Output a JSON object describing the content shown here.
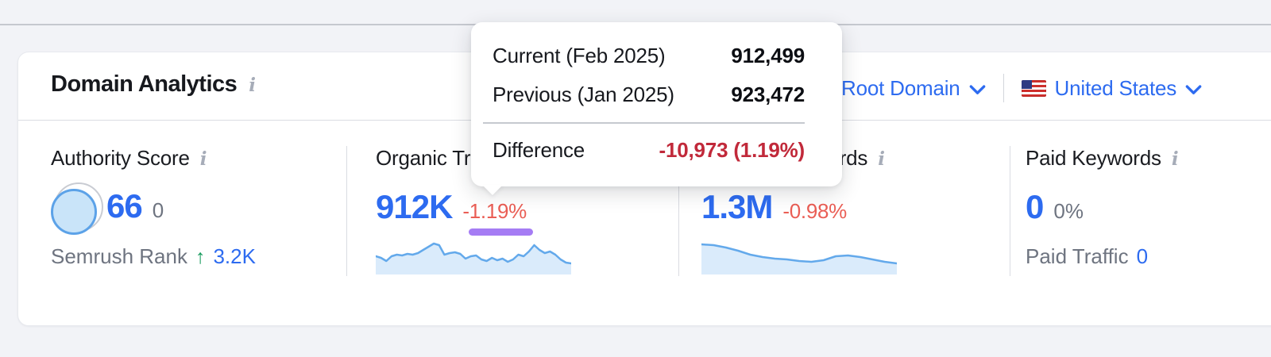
{
  "header": {
    "title": "Domain Analytics",
    "scope_selector": {
      "label": "Root Domain"
    },
    "country_selector": {
      "label": "United States",
      "flag": "us-flag"
    }
  },
  "icons": {
    "info": "i",
    "up_arrow": "↑",
    "chevron": "chevron-down"
  },
  "tooltip": {
    "rows": [
      {
        "label": "Current (Feb 2025)",
        "value": "912,499"
      },
      {
        "label": "Previous (Jan 2025)",
        "value": "923,472"
      }
    ],
    "difference": {
      "label": "Difference",
      "value": "-10,973 (1.19%)"
    }
  },
  "metrics": {
    "authority": {
      "label": "Authority Score",
      "value": "66",
      "sub": "0",
      "rank_label": "Semrush Rank",
      "rank_value": "3.2K"
    },
    "organic": {
      "label": "Organic Traffic",
      "value": "912K",
      "change": "-1.19%"
    },
    "keywords": {
      "label": "Organic Keywords",
      "value": "1.3M",
      "change": "-0.98%"
    },
    "paid": {
      "label": "Paid Keywords",
      "value": "0",
      "sub": "0%",
      "traffic_label": "Paid Traffic",
      "traffic_value": "0"
    }
  },
  "colors": {
    "accent_blue": "#2D6BF0",
    "change_red": "#EA5E55",
    "difference_red": "#C1293A",
    "highlight_purple": "#A57CF4",
    "rank_green": "#159A5C",
    "spark_line": "#63A9EB",
    "spark_fill": "#DAEBFB"
  },
  "chart_data": [
    {
      "type": "area",
      "name": "organic-traffic-sparkline",
      "values": [
        23,
        21,
        17,
        23,
        25,
        24,
        26,
        25,
        27,
        31,
        35,
        39,
        37,
        25,
        27,
        28,
        26,
        20,
        23,
        24,
        19,
        17,
        21,
        18,
        20,
        16,
        19,
        25,
        23,
        29,
        37,
        31,
        27,
        29,
        25,
        19,
        15,
        14
      ],
      "ymax": 47,
      "line_color": "#63A9EB",
      "fill_color": "#DAEBFB"
    },
    {
      "type": "area",
      "name": "organic-keywords-sparkline",
      "values": [
        38,
        37,
        34,
        30,
        25,
        22,
        20,
        19,
        17,
        16,
        18,
        23,
        24,
        22,
        19,
        16,
        14
      ],
      "ymax": 40,
      "line_color": "#63A9EB",
      "fill_color": "#DAEBFB"
    }
  ]
}
